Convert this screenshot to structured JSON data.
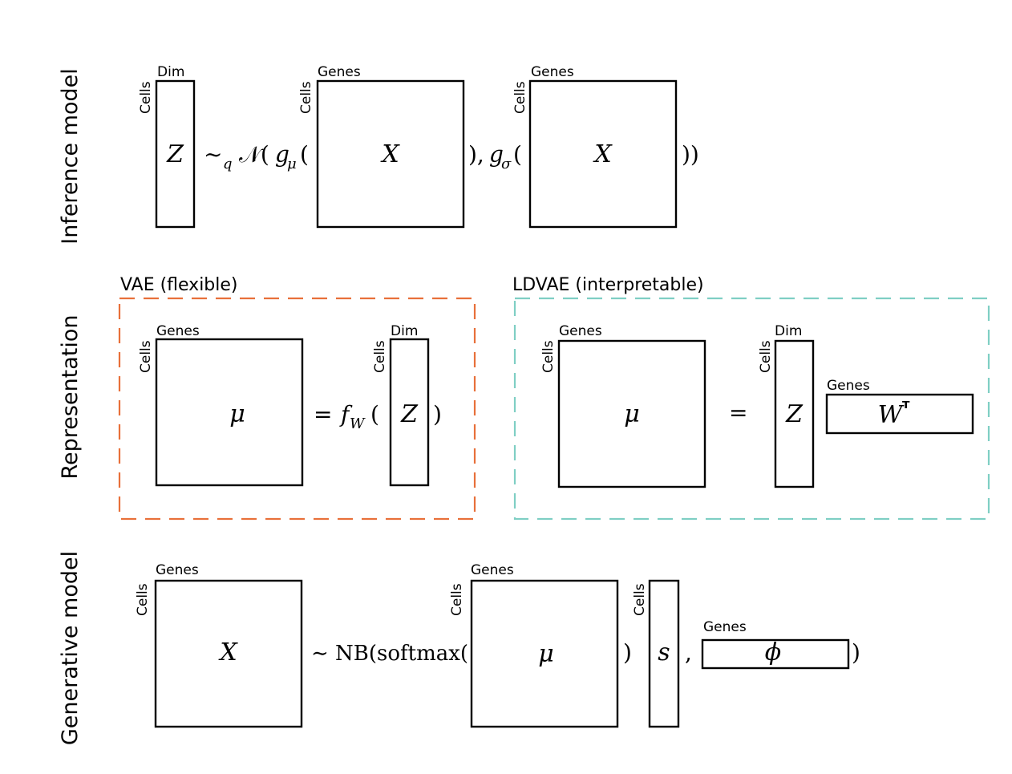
{
  "sections": {
    "inference": "Inference model",
    "representation": "Representation",
    "generative": "Generative model"
  },
  "axes": {
    "cells": "Cells",
    "dim": "Dim",
    "genes": "Genes"
  },
  "frames": {
    "vae_title": "VAE (flexible)",
    "ldvae_title": "LDVAE (interpretable)",
    "vae_color": "#E8703A",
    "ldvae_color": "#7FCFC4"
  },
  "symbols": {
    "Z": "Z",
    "X": "X",
    "mu": "μ",
    "s": "s",
    "phi": "ϕ",
    "W": "W",
    "transpose": "ᵀ"
  },
  "operators": {
    "inf_sim_q": "∼",
    "inf_q_sub": "q",
    "inf_normal": "𝒩(",
    "inf_g": "g",
    "inf_mu_sub": "μ",
    "inf_open": "(",
    "inf_close_comma": "),",
    "inf_sigma_sub": "σ",
    "inf_close_final": "))",
    "vae_eq": "=",
    "vae_f": "f",
    "vae_w_sub": "W",
    "vae_open": "(",
    "vae_close": ")",
    "ldvae_eq": "=",
    "gen_prefix": "∼ NB(softmax(",
    "gen_close": ")",
    "gen_comma": ",",
    "gen_close_final": ")"
  }
}
